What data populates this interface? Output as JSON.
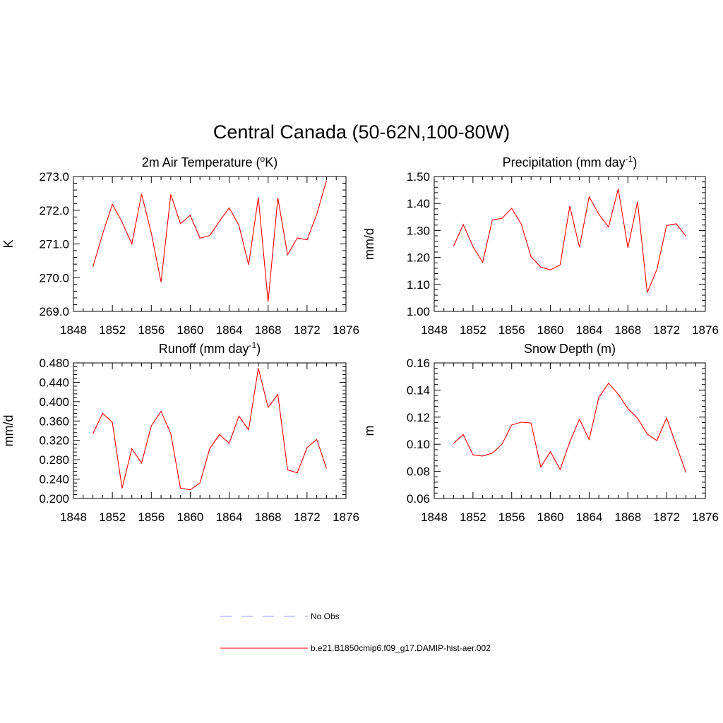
{
  "title": "Central Canada (50-62N,100-80W)",
  "legend": [
    {
      "label": "No Obs",
      "color": "#9999ff",
      "dash": true
    },
    {
      "label": "b.e21.B1850cmip6.f09_g17.DAMIP-hist-aer.002",
      "color": "#ff0000",
      "dash": false
    }
  ],
  "chart_data": [
    {
      "type": "line",
      "title_main": "2m Air Temperature (",
      "title_sup": "o",
      "title_end": "K)",
      "ylabel": "K",
      "xlim": [
        1848,
        1876
      ],
      "ylim": [
        269.0,
        273.0
      ],
      "xticks": [
        1848,
        1852,
        1856,
        1860,
        1864,
        1868,
        1872,
        1876
      ],
      "yticks": [
        269.0,
        270.0,
        271.0,
        272.0,
        273.0
      ],
      "ytick_labels": [
        "269.0",
        "270.0",
        "271.0",
        "272.0",
        "273.0"
      ],
      "minor_y": 0.2,
      "color": "#ff0000",
      "x": [
        1850,
        1851,
        1852,
        1853,
        1854,
        1855,
        1856,
        1857,
        1858,
        1859,
        1860,
        1861,
        1862,
        1863,
        1864,
        1865,
        1866,
        1867,
        1868,
        1869,
        1870,
        1871,
        1872,
        1873,
        1874
      ],
      "y": [
        270.32,
        271.3,
        272.18,
        271.65,
        271.0,
        272.48,
        271.32,
        269.87,
        272.47,
        271.6,
        271.85,
        271.17,
        271.25,
        271.67,
        272.07,
        271.55,
        270.38,
        272.38,
        269.28,
        272.37,
        270.68,
        271.18,
        271.12,
        271.88,
        272.88
      ]
    },
    {
      "type": "line",
      "title_main": "Precipitation (mm day",
      "title_sup": "-1",
      "title_end": ")",
      "ylabel": "mm/d",
      "xlim": [
        1848,
        1876
      ],
      "ylim": [
        1.0,
        1.5
      ],
      "xticks": [
        1848,
        1852,
        1856,
        1860,
        1864,
        1868,
        1872,
        1876
      ],
      "yticks": [
        1.0,
        1.1,
        1.2,
        1.3,
        1.4,
        1.5
      ],
      "ytick_labels": [
        "1.00",
        "1.10",
        "1.20",
        "1.30",
        "1.40",
        "1.50"
      ],
      "minor_y": 0.02,
      "color": "#ff0000",
      "x": [
        1850,
        1851,
        1852,
        1853,
        1854,
        1855,
        1856,
        1857,
        1858,
        1859,
        1860,
        1861,
        1862,
        1863,
        1864,
        1865,
        1866,
        1867,
        1868,
        1869,
        1870,
        1871,
        1872,
        1873,
        1874
      ],
      "y": [
        1.242,
        1.322,
        1.24,
        1.182,
        1.339,
        1.345,
        1.382,
        1.323,
        1.203,
        1.164,
        1.154,
        1.172,
        1.39,
        1.238,
        1.425,
        1.36,
        1.313,
        1.454,
        1.236,
        1.407,
        1.069,
        1.156,
        1.318,
        1.325,
        1.278
      ]
    },
    {
      "type": "line",
      "title_main": "Runoff (mm day",
      "title_sup": "-1",
      "title_end": ")",
      "ylabel": "mm/d",
      "xlim": [
        1848,
        1876
      ],
      "ylim": [
        0.2,
        0.48
      ],
      "xticks": [
        1848,
        1852,
        1856,
        1860,
        1864,
        1868,
        1872,
        1876
      ],
      "yticks": [
        0.2,
        0.24,
        0.28,
        0.32,
        0.36,
        0.4,
        0.44,
        0.48
      ],
      "ytick_labels": [
        "0.200",
        "0.240",
        "0.280",
        "0.320",
        "0.360",
        "0.400",
        "0.440",
        "0.480"
      ],
      "minor_y": 0.008,
      "color": "#ff0000",
      "x": [
        1850,
        1851,
        1852,
        1853,
        1854,
        1855,
        1856,
        1857,
        1858,
        1859,
        1860,
        1861,
        1862,
        1863,
        1864,
        1865,
        1866,
        1867,
        1868,
        1869,
        1870,
        1871,
        1872,
        1873,
        1874
      ],
      "y": [
        0.334,
        0.376,
        0.357,
        0.221,
        0.303,
        0.273,
        0.35,
        0.38,
        0.334,
        0.221,
        0.218,
        0.232,
        0.303,
        0.332,
        0.314,
        0.37,
        0.342,
        0.469,
        0.388,
        0.415,
        0.259,
        0.253,
        0.305,
        0.322,
        0.262
      ]
    },
    {
      "type": "line",
      "title_main": "Snow Depth (m)",
      "title_sup": "",
      "title_end": "",
      "ylabel": "m",
      "xlim": [
        1848,
        1876
      ],
      "ylim": [
        0.06,
        0.16
      ],
      "xticks": [
        1848,
        1852,
        1856,
        1860,
        1864,
        1868,
        1872,
        1876
      ],
      "yticks": [
        0.06,
        0.08,
        0.1,
        0.12,
        0.14,
        0.16
      ],
      "ytick_labels": [
        "0.06",
        "0.08",
        "0.10",
        "0.12",
        "0.14",
        "0.16"
      ],
      "minor_y": 0.004,
      "color": "#ff0000",
      "x": [
        1850,
        1851,
        1852,
        1853,
        1854,
        1855,
        1856,
        1857,
        1858,
        1859,
        1860,
        1861,
        1862,
        1863,
        1864,
        1865,
        1866,
        1867,
        1868,
        1869,
        1870,
        1871,
        1872,
        1873,
        1874
      ],
      "y": [
        0.1005,
        0.1072,
        0.0922,
        0.0913,
        0.0935,
        0.1,
        0.1142,
        0.1163,
        0.1157,
        0.0833,
        0.0945,
        0.0813,
        0.1017,
        0.1185,
        0.1035,
        0.1345,
        0.145,
        0.137,
        0.1263,
        0.1192,
        0.1075,
        0.1027,
        0.1195,
        0.099,
        0.079
      ]
    }
  ]
}
